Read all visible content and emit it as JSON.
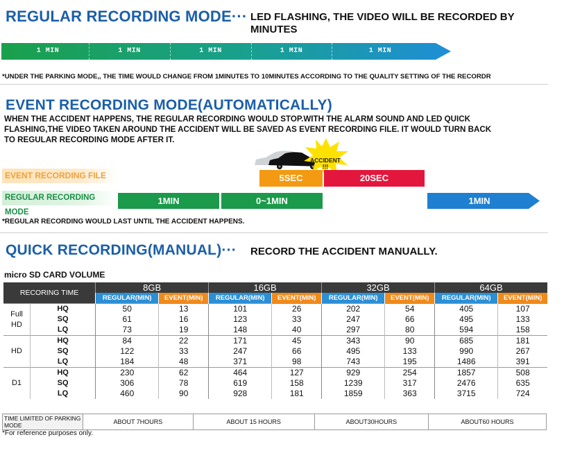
{
  "regular": {
    "title": "REGULAR RECORDING MODE···",
    "subtitle": "LED FLASHING, THE VIDEO WILL BE RECORDED BY MINUTES",
    "segments": [
      "1 MIN",
      "1 MIN",
      "1 MIN",
      "1 MIN",
      "1 MIN"
    ],
    "note": "*UNDER THE PARKING MODE,, THE TIME WOULD CHANGE FROM 1MINUTES TO 10MINUTES ACCORDING TO THE QUALITY SETTING OF THE RECORDR"
  },
  "event": {
    "title": "EVENT RECORDING MODE(AUTOMATICALLY)",
    "desc_1": "WHEN THE ACCIDENT HAPPENS, THE REGULAR RECORDING  WOULD STOP.WITH THE ALARM SOUND AND LED QUICK",
    "desc_2": "FLASHING,THE VIDEO TAKEN AROUND THE ACCIDENT WILL BE SAVED AS EVENT RECORDING FILE. IT WOULD TURN BACK",
    "desc_3": "TO REGULAR RECORDING MODE AFTER IT.",
    "accident_label": "ACCIDENT",
    "accident_marks": "!!!",
    "legend_event": "EVENT RECORDING FILE",
    "legend_regular": "REGULAR RECORDING MODE",
    "box_5sec": "5SEC",
    "box_20sec": "20SEC",
    "box_1min_a": "1MIN",
    "box_0_1min": "0~1MIN",
    "box_1min_b": "1MIN",
    "note": "*REGULAR RECORDING WOULD LAST UNTIL THE ACCIDENT HAPPENS."
  },
  "quick": {
    "title": "QUICK RECORDING(MANUAL)···",
    "subtitle": "RECORD THE ACCIDENT MANUALLY."
  },
  "table": {
    "caption": "micro SD CARD VOLUME",
    "corner": "RECORING TIME",
    "capacities": [
      "8GB",
      "16GB",
      "32GB",
      "64GB"
    ],
    "sub_regular": "REGULAR(MIN)",
    "sub_event": "EVENT(MIN)",
    "groups": [
      {
        "name_1": "Full",
        "name_2": "HD",
        "rows": [
          {
            "q": "HQ",
            "v": [
              "50",
              "13",
              "101",
              "26",
              "202",
              "54",
              "405",
              "107"
            ]
          },
          {
            "q": "SQ",
            "v": [
              "61",
              "16",
              "123",
              "33",
              "247",
              "66",
              "495",
              "133"
            ]
          },
          {
            "q": "LQ",
            "v": [
              "73",
              "19",
              "148",
              "40",
              "297",
              "80",
              "594",
              "158"
            ]
          }
        ]
      },
      {
        "name_1": "HD",
        "name_2": "",
        "rows": [
          {
            "q": "HQ",
            "v": [
              "84",
              "22",
              "171",
              "45",
              "343",
              "90",
              "685",
              "181"
            ]
          },
          {
            "q": "SQ",
            "v": [
              "122",
              "33",
              "247",
              "66",
              "495",
              "133",
              "990",
              "267"
            ]
          },
          {
            "q": "LQ",
            "v": [
              "184",
              "48",
              "371",
              "98",
              "743",
              "195",
              "1486",
              "391"
            ]
          }
        ]
      },
      {
        "name_1": "D1",
        "name_2": "",
        "rows": [
          {
            "q": "HQ",
            "v": [
              "230",
              "62",
              "464",
              "127",
              "929",
              "254",
              "1857",
              "508"
            ]
          },
          {
            "q": "SQ",
            "v": [
              "306",
              "78",
              "619",
              "158",
              "1239",
              "317",
              "2476",
              "635"
            ]
          },
          {
            "q": "LQ",
            "v": [
              "460",
              "90",
              "928",
              "181",
              "1859",
              "363",
              "3715",
              "724"
            ]
          }
        ]
      }
    ],
    "parking_label": "TIME LIMITED OF PARKING MODE",
    "parking_values": [
      "ABOUT 7HOURS",
      "ABOUT 15 HOURS",
      "ABOUT30HOURS",
      "ABOUT60 HOURS"
    ],
    "footnote": "*For reference purposes only."
  },
  "colors": {
    "title_blue": "#1b5fa8",
    "green": "#1a9a4a",
    "blue": "#1f7fd0",
    "orange": "#f39a12",
    "red": "#e3173d",
    "legend_event_bg": "#fde3b8"
  }
}
